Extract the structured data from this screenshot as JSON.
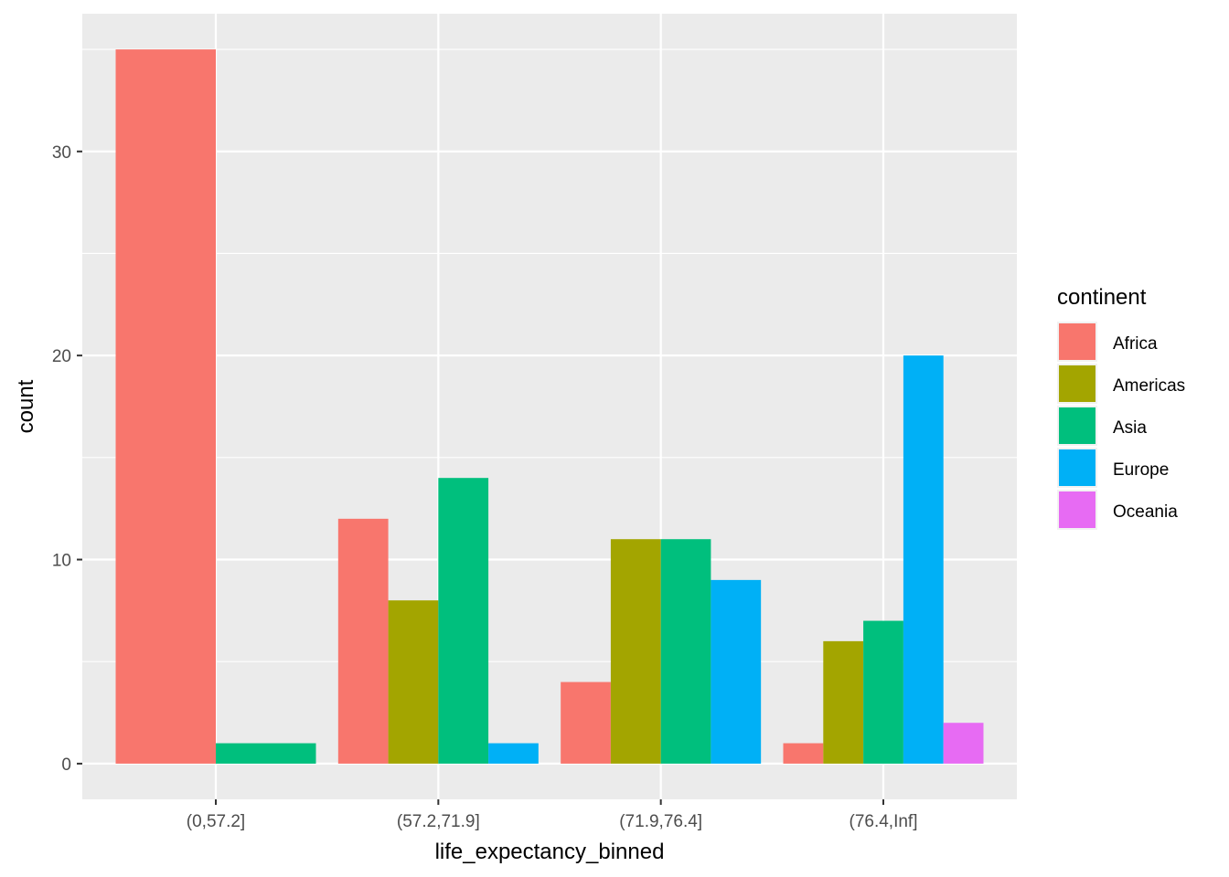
{
  "chart_data": {
    "type": "bar",
    "title": "",
    "xlabel": "life_expectancy_binned",
    "ylabel": "count",
    "categories": [
      "(0,57.2]",
      "(57.2,71.9]",
      "(71.9,76.4]",
      "(76.4,Inf]"
    ],
    "ylim": [
      -1.75,
      36.75
    ],
    "yticks": [
      0,
      10,
      20,
      30
    ],
    "grid": true,
    "legend": {
      "title": "continent",
      "placement": "right",
      "entries": [
        "Africa",
        "Americas",
        "Asia",
        "Europe",
        "Oceania"
      ]
    },
    "colors": {
      "Africa": "#F8766D",
      "Americas": "#A3A500",
      "Asia": "#00BF7D",
      "Europe": "#00B0F6",
      "Oceania": "#E76BF3"
    },
    "groups": [
      {
        "category": "(0,57.2]",
        "bars": [
          {
            "series": "Africa",
            "value": 35
          },
          {
            "series": "Asia",
            "value": 1
          }
        ]
      },
      {
        "category": "(57.2,71.9]",
        "bars": [
          {
            "series": "Africa",
            "value": 12
          },
          {
            "series": "Americas",
            "value": 8
          },
          {
            "series": "Asia",
            "value": 14
          },
          {
            "series": "Europe",
            "value": 1
          }
        ]
      },
      {
        "category": "(71.9,76.4]",
        "bars": [
          {
            "series": "Africa",
            "value": 4
          },
          {
            "series": "Americas",
            "value": 11
          },
          {
            "series": "Asia",
            "value": 11
          },
          {
            "series": "Europe",
            "value": 9
          }
        ]
      },
      {
        "category": "(76.4,Inf]",
        "bars": [
          {
            "series": "Africa",
            "value": 1
          },
          {
            "series": "Americas",
            "value": 6
          },
          {
            "series": "Asia",
            "value": 7
          },
          {
            "series": "Europe",
            "value": 20
          },
          {
            "series": "Oceania",
            "value": 2
          }
        ]
      }
    ]
  }
}
